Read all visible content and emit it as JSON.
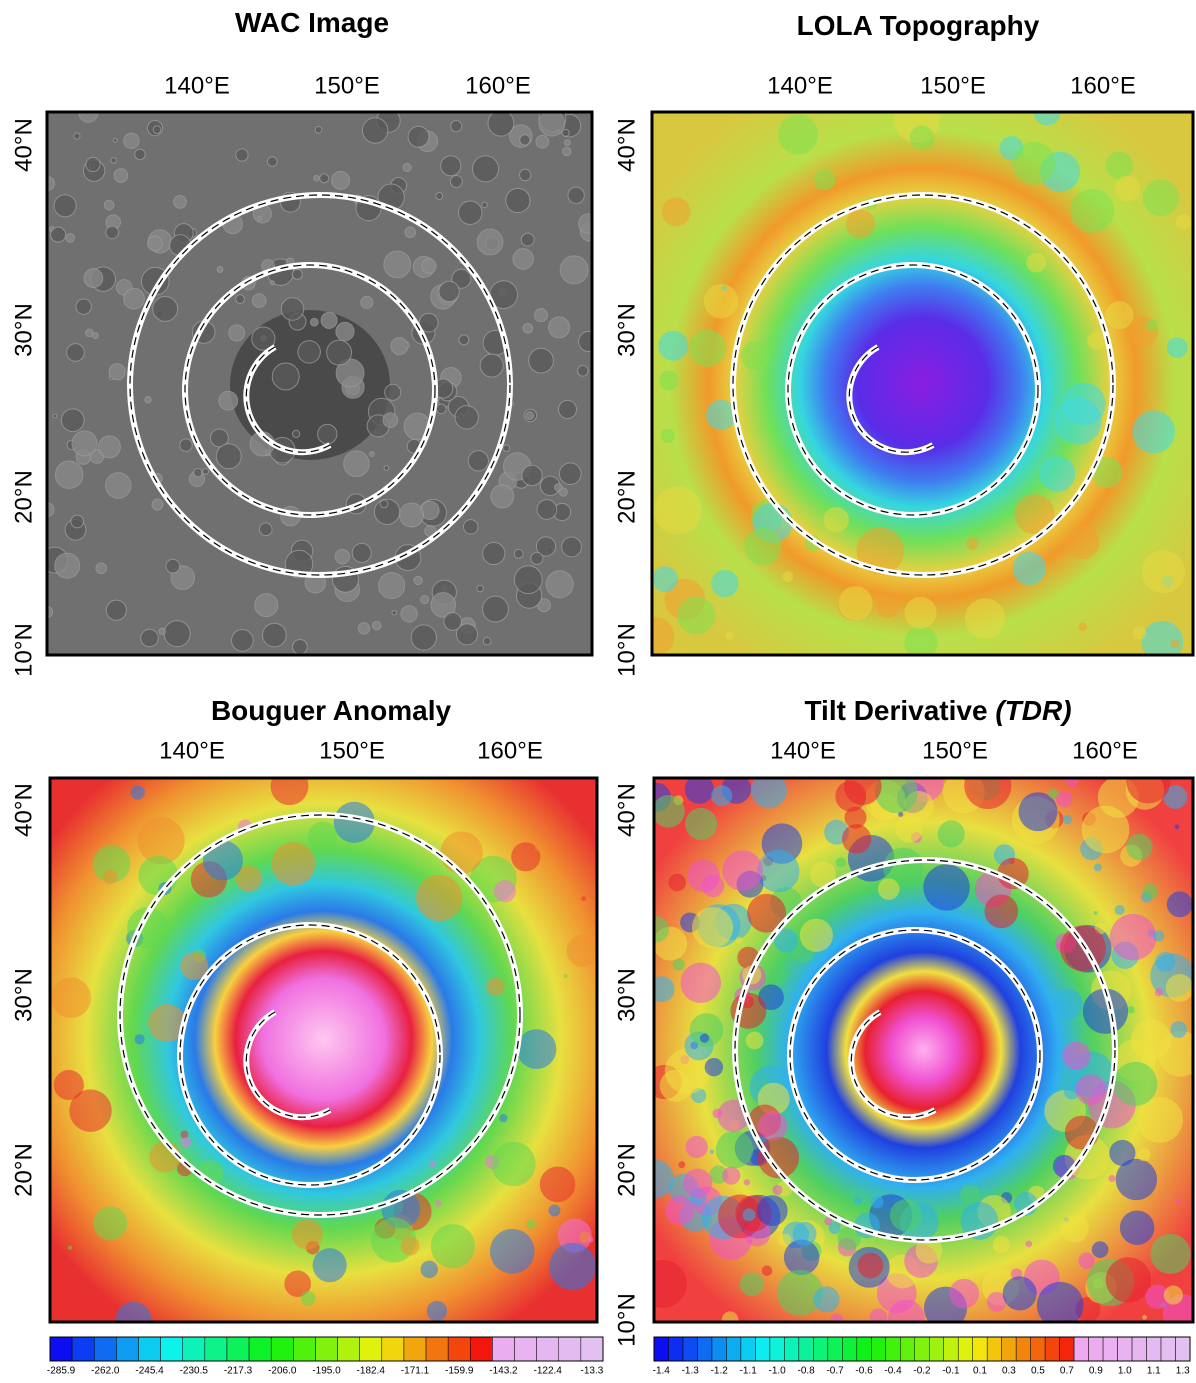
{
  "panels": [
    {
      "title": "WAC Image",
      "xticks": [
        "140°E",
        "150°E",
        "160°E"
      ],
      "yticks": [
        "40°N",
        "30°N",
        "20°N",
        "10°N"
      ]
    },
    {
      "title": "LOLA Topography",
      "xticks": [
        "140°E",
        "150°E",
        "160°E"
      ],
      "yticks": [
        "40°N",
        "30°N",
        "20°N",
        "10°N"
      ]
    },
    {
      "title": "Bouguer Anomaly",
      "xticks": [
        "140°E",
        "150°E",
        "160°E"
      ],
      "yticks": [
        "40°N",
        "30°N",
        "20°N"
      ],
      "colorbar": [
        "-285.9",
        "-262.0",
        "-245.4",
        "-230.5",
        "-217.3",
        "-206.0",
        "-195.0",
        "-182.4",
        "-171.1",
        "-159.9",
        "-143.2",
        "-122.4",
        "-13.3"
      ]
    },
    {
      "title": "Tilt Derivative",
      "title_italic": "(TDR)",
      "xticks": [
        "140°E",
        "150°E",
        "160°E"
      ],
      "yticks": [
        "40°N",
        "30°N",
        "20°N",
        "10°N"
      ],
      "colorbar": [
        "-1.4",
        "-1.3",
        "-1.2",
        "-1.1",
        "-1.0",
        "-0.8",
        "-0.7",
        "-0.6",
        "-0.4",
        "-0.2",
        "-0.1",
        "0.1",
        "0.3",
        "0.5",
        "0.7",
        "0.9",
        "1.0",
        "1.1",
        "1.3"
      ]
    }
  ]
}
